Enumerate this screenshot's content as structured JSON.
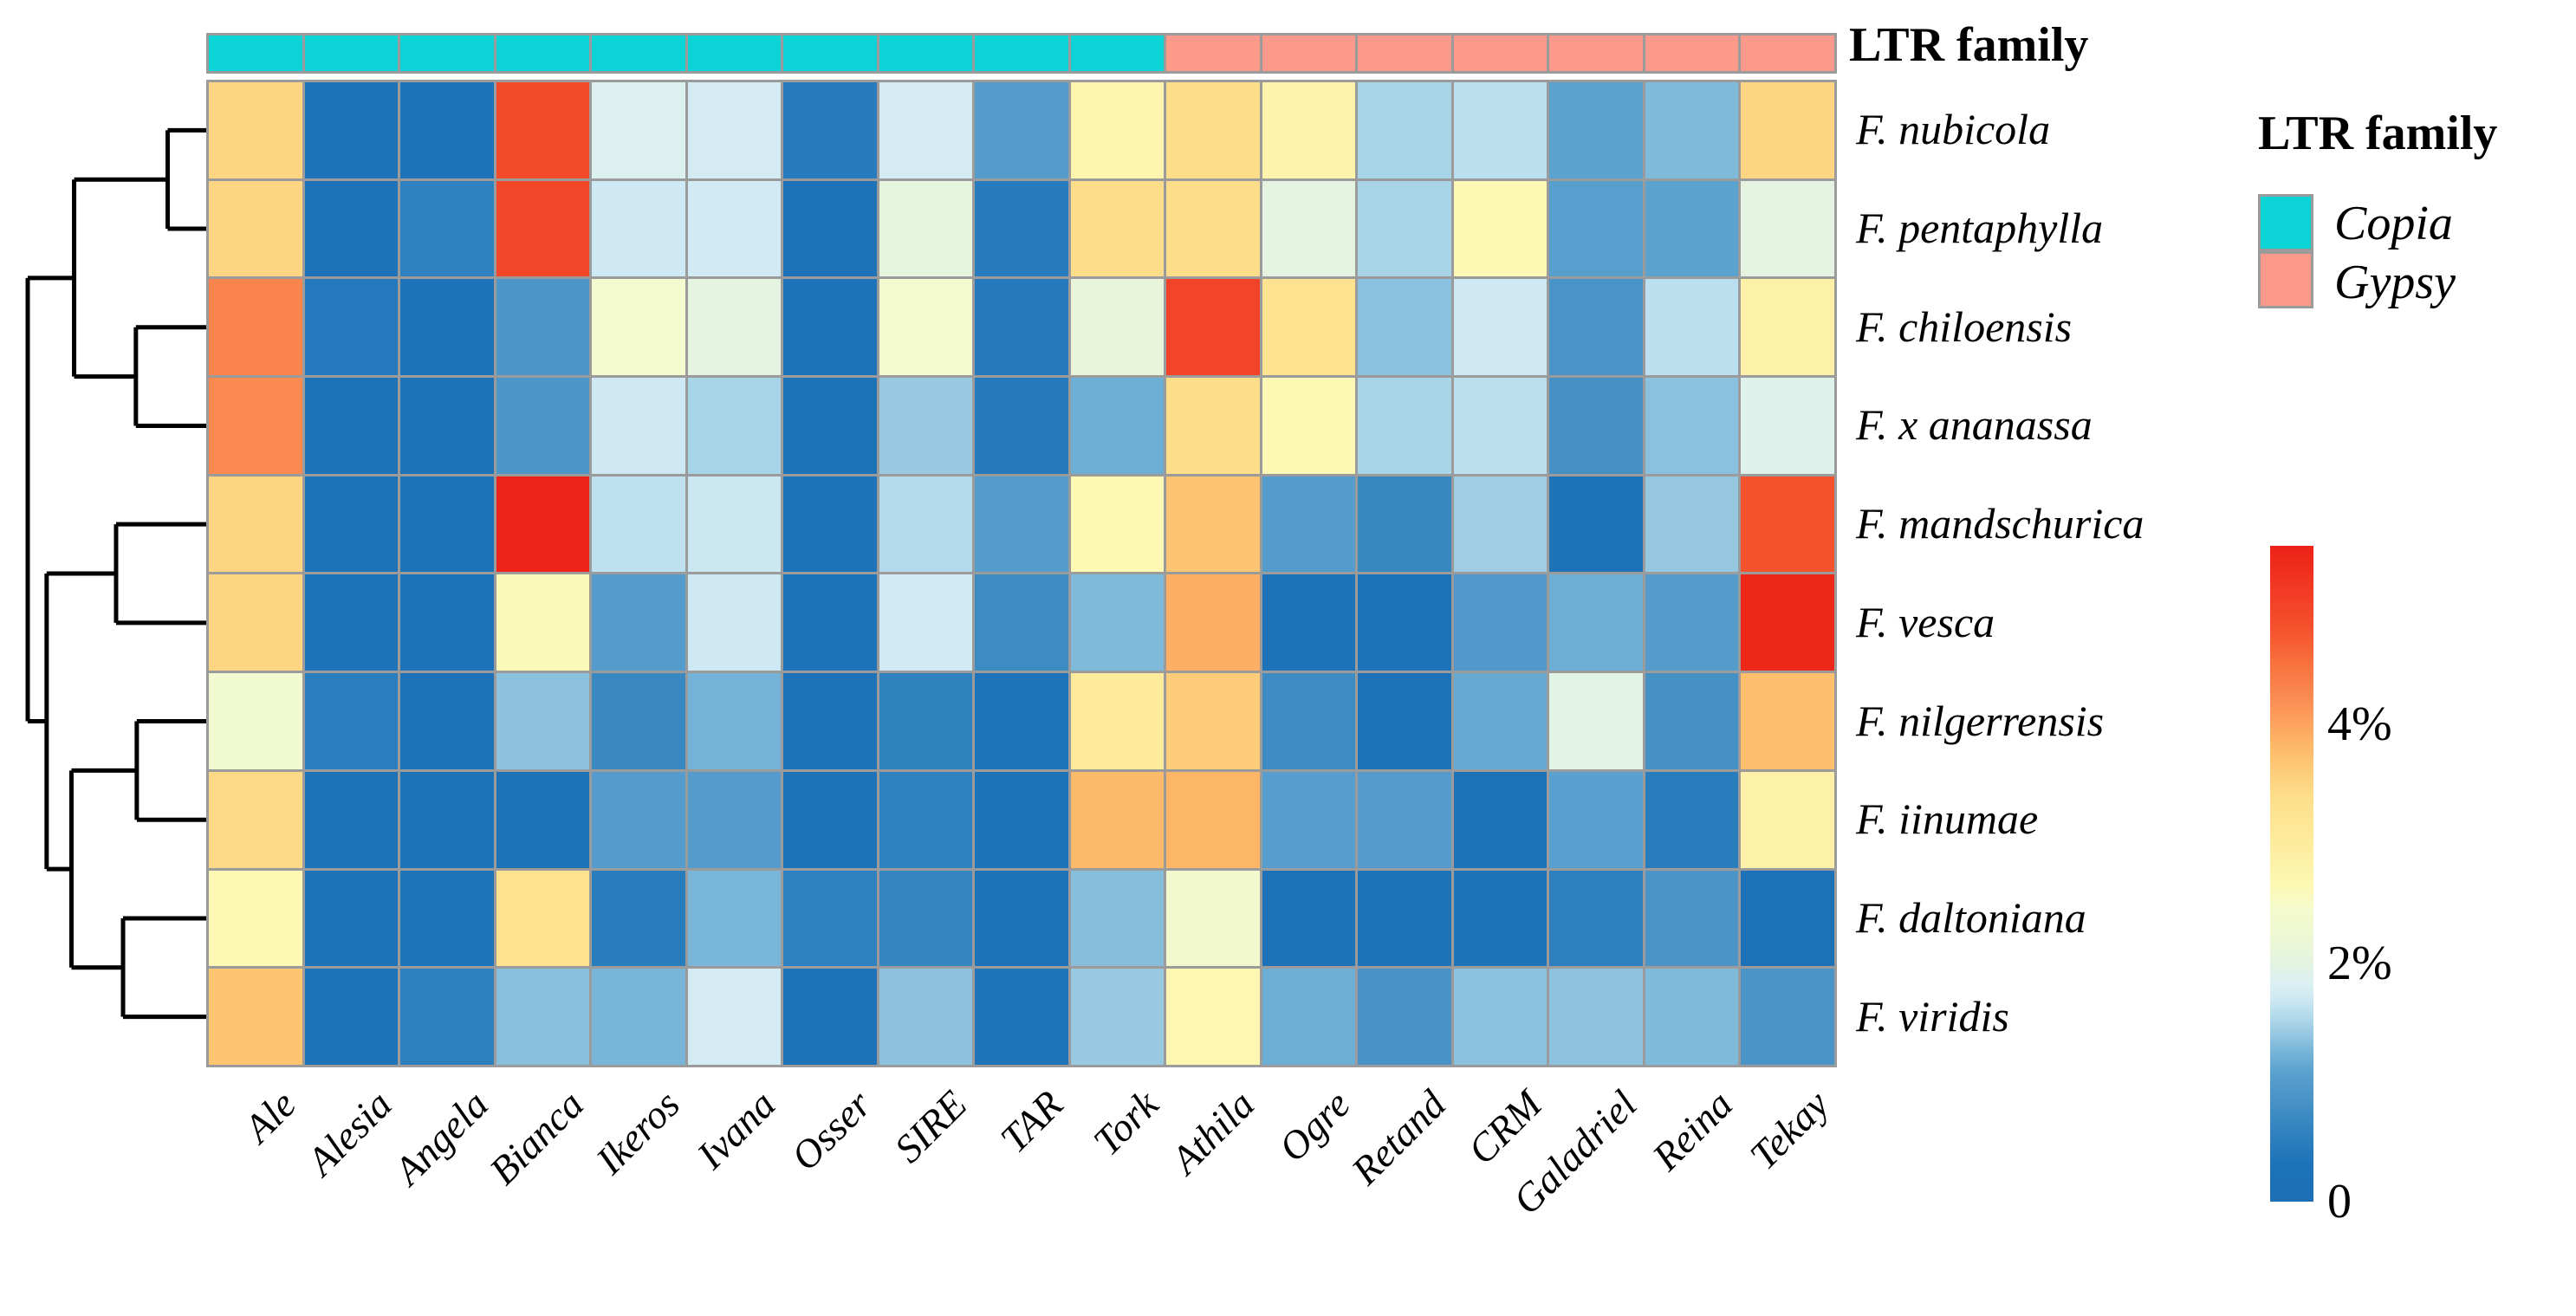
{
  "annotation": {
    "title": "LTR family"
  },
  "legend": {
    "title": "LTR family",
    "items": [
      {
        "label": "Copia",
        "color": "#0cd3d6"
      },
      {
        "label": "Gypsy",
        "color": "#fb998a"
      }
    ]
  },
  "colorbar": {
    "max": 5.5,
    "ticks": [
      {
        "label": "4%",
        "value": 4
      },
      {
        "label": "2%",
        "value": 2
      },
      {
        "label": "0",
        "value": 0
      }
    ]
  },
  "colors": {
    "grid_line": "#9b9b9b",
    "dendrogram": "#000000",
    "background": "#ffffff"
  },
  "chart_data": {
    "type": "heatmap",
    "title": "",
    "unit": "%",
    "scale_max": 5.5,
    "legend_position": "right",
    "rows": [
      "F. nubicola",
      "F. pentaphylla",
      "F. chiloensis",
      "F. x ananassa",
      "F. mandschurica",
      "F. vesca",
      "F. nilgerrensis",
      "F. iinumae",
      "F. daltoniana",
      "F. viridis"
    ],
    "columns": [
      "Ale",
      "Alesia",
      "Angela",
      "Bianca",
      "Ikeros",
      "Ivana",
      "Osser",
      "SIRE",
      "TAR",
      "Tork",
      "Athila",
      "Ogre",
      "Retand",
      "CRM",
      "Galadriel",
      "Reina",
      "Tekay"
    ],
    "column_group_assignments": [
      "Copia",
      "Copia",
      "Copia",
      "Copia",
      "Copia",
      "Copia",
      "Copia",
      "Copia",
      "Copia",
      "Copia",
      "Gypsy",
      "Gypsy",
      "Gypsy",
      "Gypsy",
      "Gypsy",
      "Gypsy",
      "Gypsy"
    ],
    "values_pct": [
      [
        3.5,
        0.3,
        0.3,
        4.9,
        1.85,
        1.75,
        0.45,
        1.75,
        1.0,
        2.75,
        3.4,
        2.8,
        1.5,
        1.6,
        1.1,
        1.3,
        3.5
      ],
      [
        3.5,
        0.3,
        0.55,
        4.95,
        1.7,
        1.72,
        0.3,
        2.05,
        0.45,
        3.4,
        3.4,
        2.0,
        1.5,
        2.65,
        1.05,
        1.1,
        2.0
      ],
      [
        4.3,
        0.4,
        0.3,
        0.9,
        2.45,
        2.0,
        0.28,
        2.45,
        0.42,
        2.1,
        5.0,
        3.3,
        1.35,
        1.7,
        0.85,
        1.6,
        2.85
      ],
      [
        4.25,
        0.32,
        0.28,
        0.9,
        1.7,
        1.5,
        0.28,
        1.42,
        0.42,
        1.2,
        3.4,
        2.65,
        1.5,
        1.6,
        0.82,
        1.35,
        1.9
      ],
      [
        3.5,
        0.3,
        0.3,
        5.45,
        1.62,
        1.68,
        0.3,
        1.55,
        1.0,
        2.65,
        3.7,
        1.0,
        0.65,
        1.45,
        0.32,
        1.4,
        4.8
      ],
      [
        3.5,
        0.28,
        0.28,
        2.6,
        1.0,
        1.7,
        0.26,
        1.72,
        0.72,
        1.3,
        3.9,
        0.26,
        0.3,
        0.95,
        1.2,
        1.0,
        5.4
      ],
      [
        2.35,
        0.5,
        0.3,
        1.36,
        0.68,
        1.24,
        0.27,
        0.58,
        0.33,
        3.05,
        3.6,
        0.74,
        0.3,
        1.16,
        1.95,
        0.82,
        3.75
      ],
      [
        3.45,
        0.3,
        0.3,
        0.3,
        1.0,
        1.0,
        0.3,
        0.55,
        0.3,
        3.8,
        3.85,
        1.03,
        1.0,
        0.2,
        1.06,
        0.48,
        2.85
      ],
      [
        2.65,
        0.3,
        0.35,
        3.3,
        0.48,
        1.27,
        0.55,
        0.62,
        0.3,
        1.33,
        2.4,
        0.27,
        0.27,
        0.3,
        0.52,
        0.88,
        0.25
      ],
      [
        3.7,
        0.3,
        0.52,
        1.34,
        1.26,
        1.75,
        0.26,
        1.36,
        0.35,
        1.42,
        2.7,
        1.2,
        0.84,
        1.35,
        1.37,
        1.3,
        0.88
      ]
    ],
    "colorscale": [
      [
        0.0,
        "#1e6fb5"
      ],
      [
        0.055,
        "#1d72b8"
      ],
      [
        0.11,
        "#3384c0"
      ],
      [
        0.165,
        "#4d96c9"
      ],
      [
        0.2,
        "#5ba3cf"
      ],
      [
        0.235,
        "#7eb9da"
      ],
      [
        0.26,
        "#9bcbe3"
      ],
      [
        0.285,
        "#b5dcec"
      ],
      [
        0.31,
        "#cfe9f3"
      ],
      [
        0.33,
        "#daeff2"
      ],
      [
        0.365,
        "#e4f4e0"
      ],
      [
        0.4,
        "#edf7d4"
      ],
      [
        0.445,
        "#f3facd"
      ],
      [
        0.48,
        "#fdf9b5"
      ],
      [
        0.52,
        "#fdf1a6"
      ],
      [
        0.555,
        "#fdea9a"
      ],
      [
        0.61,
        "#fde08d"
      ],
      [
        0.63,
        "#fdd886"
      ],
      [
        0.67,
        "#fdc572"
      ],
      [
        0.7,
        "#fdb566"
      ],
      [
        0.765,
        "#fb8d55"
      ],
      [
        0.82,
        "#f8713e"
      ],
      [
        0.875,
        "#f4512c"
      ],
      [
        0.93,
        "#f23b25"
      ],
      [
        1.0,
        "#ec2115"
      ]
    ],
    "row_dendrogram": {
      "note": "heights are fractions of dendrogram width from the heatmap edge (1 = root)",
      "merges": [
        {
          "a": "L0",
          "b": "L1",
          "h": 0.216
        },
        {
          "a": "L2",
          "b": "L3",
          "h": 0.394
        },
        {
          "a": "M0",
          "b": "M1",
          "h": 0.74
        },
        {
          "a": "L4",
          "b": "L5",
          "h": 0.505
        },
        {
          "a": "L6",
          "b": "L7",
          "h": 0.389
        },
        {
          "a": "L8",
          "b": "L9",
          "h": 0.466
        },
        {
          "a": "M4",
          "b": "M5",
          "h": 0.755
        },
        {
          "a": "M3",
          "b": "M6",
          "h": 0.894
        },
        {
          "a": "M2",
          "b": "M7",
          "h": 1.0
        }
      ]
    }
  }
}
